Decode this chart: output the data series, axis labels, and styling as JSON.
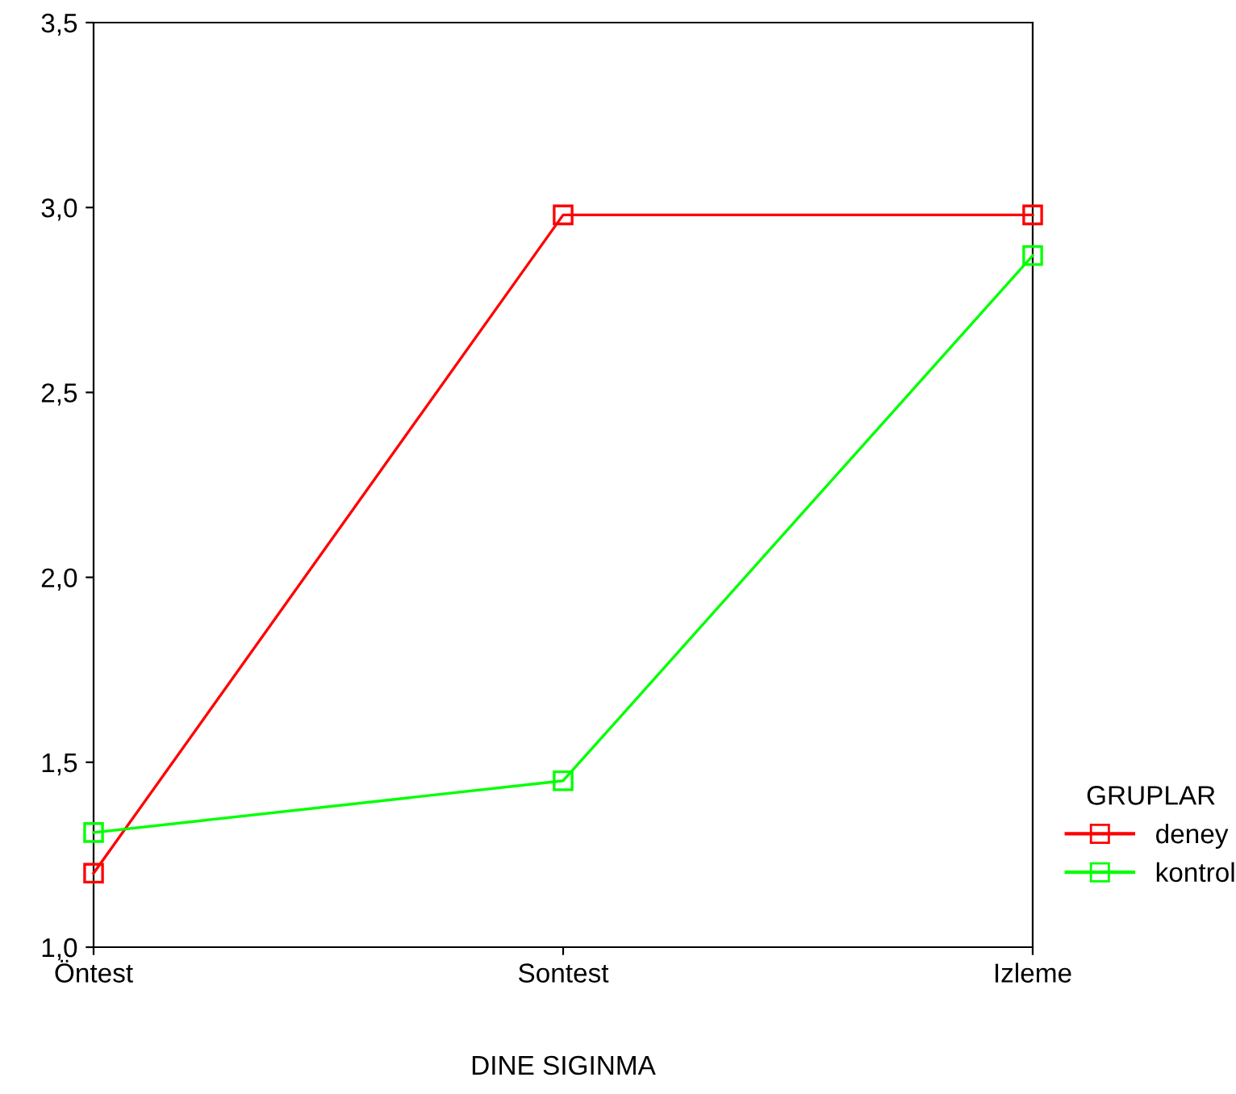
{
  "chart_data": {
    "type": "line",
    "xlabel": "DINE SIGINMA",
    "legend_title": "GRUPLAR",
    "categories": [
      "Öntest",
      "Sontest",
      "Izleme"
    ],
    "series": [
      {
        "name": "deney",
        "color": "#ff0000",
        "values": [
          1.2,
          2.98,
          2.98
        ]
      },
      {
        "name": "kontrol",
        "color": "#00ff00",
        "values": [
          1.31,
          1.45,
          2.87
        ]
      }
    ],
    "ylim": [
      1.0,
      3.5
    ],
    "yticks": [
      {
        "value": 1.0,
        "label": "1,0"
      },
      {
        "value": 1.5,
        "label": "1,5"
      },
      {
        "value": 2.0,
        "label": "2,0"
      },
      {
        "value": 2.5,
        "label": "2,5"
      },
      {
        "value": 3.0,
        "label": "3,0"
      },
      {
        "value": 3.5,
        "label": "3,5"
      }
    ],
    "marker": "square",
    "line_style": "solid",
    "grid": false,
    "legend": "right"
  }
}
